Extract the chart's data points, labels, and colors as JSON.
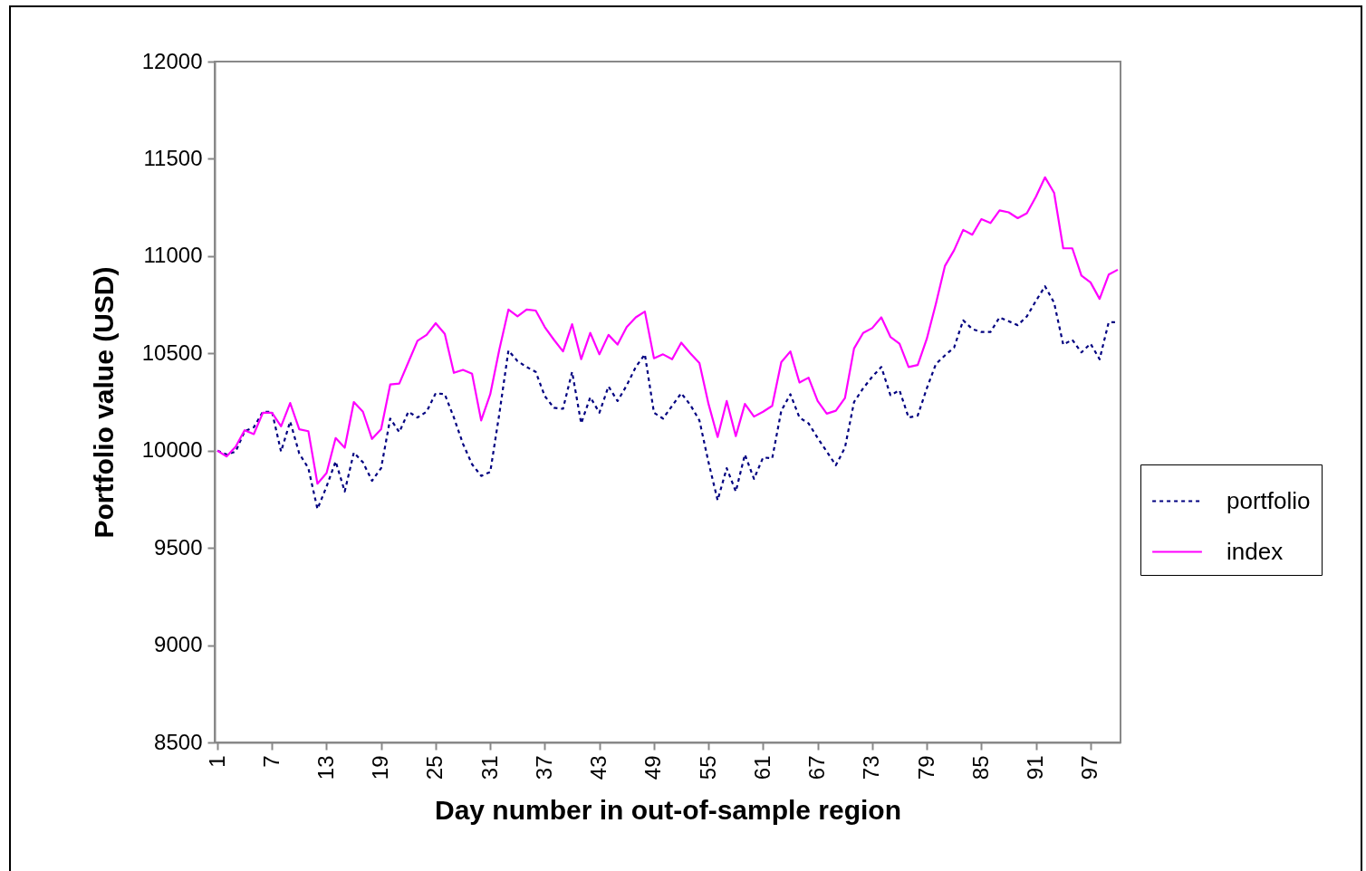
{
  "chart_data": {
    "type": "line",
    "xlabel": "Day number in out-of-sample region",
    "ylabel": "Portfolio value (USD)",
    "categories": [
      "1",
      null,
      null,
      null,
      null,
      null,
      "7",
      null,
      null,
      null,
      null,
      null,
      "13",
      null,
      null,
      null,
      null,
      null,
      "19",
      null,
      null,
      null,
      null,
      null,
      "25",
      null,
      null,
      null,
      null,
      null,
      "31",
      null,
      null,
      null,
      null,
      null,
      "37",
      null,
      null,
      null,
      null,
      null,
      "43",
      null,
      null,
      null,
      null,
      null,
      "49",
      null,
      null,
      null,
      null,
      null,
      "55",
      null,
      null,
      null,
      null,
      null,
      "61",
      null,
      null,
      null,
      null,
      null,
      "67",
      null,
      null,
      null,
      null,
      null,
      "73",
      null,
      null,
      null,
      null,
      null,
      "79",
      null,
      null,
      null,
      null,
      null,
      "85",
      null,
      null,
      null,
      null,
      null,
      "91",
      null,
      null,
      null,
      null,
      null,
      "97",
      null,
      null,
      null
    ],
    "series": [
      {
        "name": "portfolio",
        "color": "#000080",
        "line_style": "dashed",
        "values": [
          10000,
          9980,
          9995,
          10100,
          10120,
          10200,
          10200,
          9995,
          10150,
          9985,
          9910,
          9700,
          9815,
          9945,
          9790,
          9990,
          9940,
          9845,
          9910,
          10165,
          10095,
          10200,
          10170,
          10200,
          10295,
          10290,
          10170,
          10035,
          9930,
          9870,
          9890,
          10190,
          10515,
          10460,
          10430,
          10405,
          10280,
          10220,
          10215,
          10405,
          10140,
          10275,
          10195,
          10330,
          10255,
          10335,
          10430,
          10495,
          10195,
          10165,
          10230,
          10295,
          10235,
          10155,
          9940,
          9745,
          9910,
          9790,
          9980,
          9855,
          9965,
          9960,
          10205,
          10290,
          10170,
          10140,
          10065,
          9995,
          9925,
          10015,
          10250,
          10320,
          10380,
          10430,
          10285,
          10310,
          10170,
          10180,
          10320,
          10445,
          10490,
          10530,
          10670,
          10625,
          10610,
          10610,
          10685,
          10665,
          10645,
          10690,
          10770,
          10845,
          10760,
          10545,
          10570,
          10505,
          10550,
          10470,
          10660,
          10660
        ]
      },
      {
        "name": "index",
        "color": "#ff00ff",
        "line_style": "solid",
        "values": [
          10000,
          9970,
          10020,
          10105,
          10085,
          10195,
          10195,
          10125,
          10245,
          10110,
          10100,
          9830,
          9885,
          10065,
          10015,
          10250,
          10200,
          10060,
          10110,
          10340,
          10345,
          10455,
          10565,
          10595,
          10655,
          10600,
          10400,
          10415,
          10395,
          10155,
          10290,
          10520,
          10725,
          10690,
          10725,
          10720,
          10635,
          10570,
          10510,
          10650,
          10470,
          10605,
          10495,
          10595,
          10545,
          10635,
          10685,
          10715,
          10475,
          10495,
          10470,
          10555,
          10500,
          10450,
          10240,
          10070,
          10255,
          10075,
          10240,
          10175,
          10200,
          10230,
          10455,
          10510,
          10350,
          10375,
          10255,
          10190,
          10205,
          10270,
          10525,
          10605,
          10630,
          10685,
          10585,
          10550,
          10430,
          10440,
          10575,
          10755,
          10950,
          11030,
          11135,
          11110,
          11190,
          11170,
          11235,
          11225,
          11195,
          11220,
          11305,
          11405,
          11325,
          11040,
          11040,
          10900,
          10865,
          10780,
          10905,
          10930
        ]
      }
    ],
    "ylim": [
      8500,
      12000
    ],
    "yticks": [
      8500,
      9000,
      9500,
      10000,
      10500,
      11000,
      11500,
      12000
    ],
    "grid": false,
    "legend": "right",
    "marker": "none"
  }
}
